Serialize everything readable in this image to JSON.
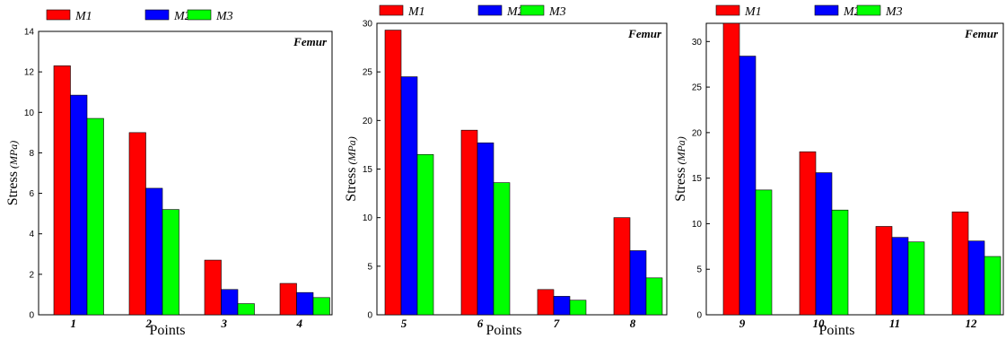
{
  "chart_data": [
    {
      "type": "bar",
      "title": "Femur",
      "xlabel": "Points",
      "ylabel": "Stress",
      "ylabel_unit": "(MPa)",
      "categories": [
        "1",
        "2",
        "3",
        "4"
      ],
      "ylim": [
        0,
        14
      ],
      "yticks": [
        "0",
        "2",
        "4",
        "6",
        "8",
        "10",
        "12",
        "14"
      ],
      "legend": "top",
      "series": [
        {
          "name": "M1",
          "color": "#ff0000",
          "values": [
            12.3,
            9.0,
            2.7,
            1.55
          ]
        },
        {
          "name": "M2",
          "color": "#0000ff",
          "values": [
            10.85,
            6.25,
            1.25,
            1.1
          ]
        },
        {
          "name": "M3",
          "color": "#00ff00",
          "values": [
            9.7,
            5.2,
            0.55,
            0.85
          ]
        }
      ]
    },
    {
      "type": "bar",
      "title": "Femur",
      "xlabel": "Points",
      "ylabel": "Stress",
      "ylabel_unit": "(MPa)",
      "categories": [
        "5",
        "6",
        "7",
        "8"
      ],
      "ylim": [
        0,
        30
      ],
      "yticks": [
        "0",
        "5",
        "10",
        "15",
        "20",
        "25",
        "30"
      ],
      "legend": "top",
      "series": [
        {
          "name": "M1",
          "color": "#ff0000",
          "values": [
            29.3,
            19.0,
            2.6,
            10.0
          ]
        },
        {
          "name": "M2",
          "color": "#0000ff",
          "values": [
            24.5,
            17.7,
            1.9,
            6.6
          ]
        },
        {
          "name": "M3",
          "color": "#00ff00",
          "values": [
            16.5,
            13.6,
            1.5,
            3.8
          ]
        }
      ]
    },
    {
      "type": "bar",
      "title": "Femur",
      "xlabel": "Points",
      "ylabel": "Stress",
      "ylabel_unit": "(MPa)",
      "categories": [
        "9",
        "10",
        "11",
        "12"
      ],
      "ylim": [
        0,
        32
      ],
      "yticks": [
        "0",
        "5",
        "10",
        "15",
        "20",
        "25",
        "30"
      ],
      "legend": "top",
      "series": [
        {
          "name": "M1",
          "color": "#ff0000",
          "values": [
            32.0,
            17.9,
            9.7,
            11.3
          ]
        },
        {
          "name": "M2",
          "color": "#0000ff",
          "values": [
            28.4,
            15.6,
            8.5,
            8.1
          ]
        },
        {
          "name": "M3",
          "color": "#00ff00",
          "values": [
            13.7,
            11.5,
            8.0,
            6.4
          ]
        }
      ]
    }
  ]
}
